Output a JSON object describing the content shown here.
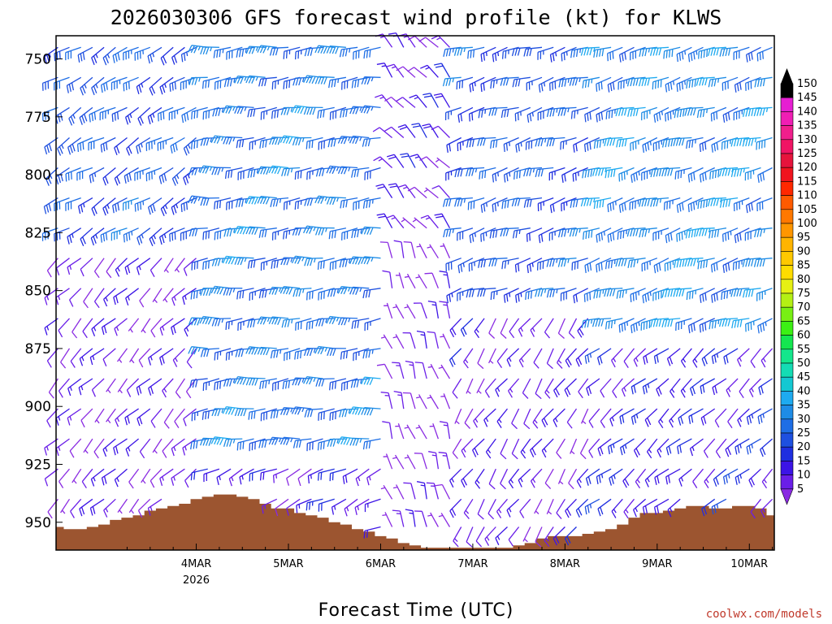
{
  "chart_data": {
    "type": "wind-barb-profile",
    "title": "2026030306 GFS forecast wind profile (kt) for KLWS",
    "xlabel": "Forecast Time (UTC)",
    "credit": "coolwx.com/models",
    "x_range_hours": [
      -18.5,
      168.5
    ],
    "y_range_hpa": [
      740,
      962
    ],
    "y_ticks": [
      750,
      775,
      800,
      825,
      850,
      875,
      900,
      925,
      950
    ],
    "x_ticks": [
      {
        "hour": 18,
        "label": "4MAR",
        "sublabel": "2026"
      },
      {
        "hour": 42,
        "label": "5MAR"
      },
      {
        "hour": 66,
        "label": "6MAR"
      },
      {
        "hour": 90,
        "label": "7MAR"
      },
      {
        "hour": 114,
        "label": "8MAR"
      },
      {
        "hour": 138,
        "label": "9MAR"
      },
      {
        "hour": 162,
        "label": "10MAR"
      }
    ],
    "colorbar": {
      "levels": [
        5,
        10,
        15,
        20,
        25,
        30,
        35,
        40,
        45,
        50,
        55,
        60,
        65,
        70,
        75,
        80,
        85,
        90,
        95,
        100,
        105,
        110,
        115,
        120,
        125,
        130,
        135,
        140,
        145,
        150
      ],
      "colors": [
        "#8a2be2",
        "#6a1ee8",
        "#3c14e6",
        "#1e2ee0",
        "#1e50e0",
        "#1e6ee6",
        "#1e8ce6",
        "#1eaaf0",
        "#14c8d2",
        "#14dcb4",
        "#14e68c",
        "#14e650",
        "#3cf014",
        "#78f014",
        "#b4f014",
        "#e6f014",
        "#ffdc00",
        "#ffc800",
        "#ffb400",
        "#ff9600",
        "#ff7800",
        "#ff5a00",
        "#ff2800",
        "#f0141e",
        "#e6143c",
        "#f01464",
        "#f01e8c",
        "#f01eb4",
        "#e61ed2",
        "#000000"
      ],
      "top_arrow_color": "#000000",
      "bottom_arrow_color": "#8a2be2"
    },
    "terrain_hpa": [
      {
        "hour": -18,
        "hpa": 952
      },
      {
        "hour": -15,
        "hpa": 953
      },
      {
        "hour": -12,
        "hpa": 953
      },
      {
        "hour": -9,
        "hpa": 952
      },
      {
        "hour": -6,
        "hpa": 951
      },
      {
        "hour": -3,
        "hpa": 949
      },
      {
        "hour": 0,
        "hpa": 948
      },
      {
        "hour": 3,
        "hpa": 947
      },
      {
        "hour": 6,
        "hpa": 945
      },
      {
        "hour": 9,
        "hpa": 944
      },
      {
        "hour": 12,
        "hpa": 943
      },
      {
        "hour": 15,
        "hpa": 942
      },
      {
        "hour": 18,
        "hpa": 940
      },
      {
        "hour": 21,
        "hpa": 939
      },
      {
        "hour": 24,
        "hpa": 938
      },
      {
        "hour": 27,
        "hpa": 938
      },
      {
        "hour": 30,
        "hpa": 939
      },
      {
        "hour": 33,
        "hpa": 940
      },
      {
        "hour": 36,
        "hpa": 942
      },
      {
        "hour": 39,
        "hpa": 944
      },
      {
        "hour": 42,
        "hpa": 944
      },
      {
        "hour": 45,
        "hpa": 946
      },
      {
        "hour": 48,
        "hpa": 947
      },
      {
        "hour": 51,
        "hpa": 948
      },
      {
        "hour": 54,
        "hpa": 950
      },
      {
        "hour": 57,
        "hpa": 951
      },
      {
        "hour": 60,
        "hpa": 953
      },
      {
        "hour": 63,
        "hpa": 954
      },
      {
        "hour": 66,
        "hpa": 956
      },
      {
        "hour": 69,
        "hpa": 957
      },
      {
        "hour": 72,
        "hpa": 959
      },
      {
        "hour": 75,
        "hpa": 960
      },
      {
        "hour": 78,
        "hpa": 961
      },
      {
        "hour": 81,
        "hpa": 961
      },
      {
        "hour": 84,
        "hpa": 961
      },
      {
        "hour": 87,
        "hpa": 961
      },
      {
        "hour": 90,
        "hpa": 961
      },
      {
        "hour": 93,
        "hpa": 961
      },
      {
        "hour": 96,
        "hpa": 961
      },
      {
        "hour": 99,
        "hpa": 961
      },
      {
        "hour": 102,
        "hpa": 960
      },
      {
        "hour": 105,
        "hpa": 959
      },
      {
        "hour": 108,
        "hpa": 957
      },
      {
        "hour": 111,
        "hpa": 956
      },
      {
        "hour": 114,
        "hpa": 956
      },
      {
        "hour": 117,
        "hpa": 956
      },
      {
        "hour": 120,
        "hpa": 955
      },
      {
        "hour": 123,
        "hpa": 954
      },
      {
        "hour": 126,
        "hpa": 953
      },
      {
        "hour": 129,
        "hpa": 951
      },
      {
        "hour": 132,
        "hpa": 948
      },
      {
        "hour": 135,
        "hpa": 946
      },
      {
        "hour": 138,
        "hpa": 946
      },
      {
        "hour": 141,
        "hpa": 945
      },
      {
        "hour": 144,
        "hpa": 944
      },
      {
        "hour": 147,
        "hpa": 943
      },
      {
        "hour": 150,
        "hpa": 943
      },
      {
        "hour": 153,
        "hpa": 944
      },
      {
        "hour": 156,
        "hpa": 944
      },
      {
        "hour": 159,
        "hpa": 943
      },
      {
        "hour": 162,
        "hpa": 943
      },
      {
        "hour": 165,
        "hpa": 944
      },
      {
        "hour": 168,
        "hpa": 947
      }
    ],
    "barb_time_step_hours": 3,
    "barb_levels_hpa": [
      745,
      758,
      771,
      784,
      797,
      810,
      823,
      836,
      849,
      862,
      875,
      888,
      901,
      914,
      927,
      940,
      952
    ],
    "wind_segments": [
      {
        "hours": [
          -18,
          18
        ],
        "levels": [
          745,
          758,
          771,
          784,
          797,
          810,
          823
        ],
        "direction": 240,
        "speed": 28
      },
      {
        "hours": [
          -18,
          18
        ],
        "levels": [
          836,
          849,
          862,
          875,
          888,
          901,
          914,
          927,
          940,
          952
        ],
        "direction": 225,
        "speed": 12
      },
      {
        "hours": [
          21,
          66
        ],
        "levels": [
          745,
          758,
          771,
          784,
          797,
          810,
          823,
          836,
          849,
          862,
          875,
          888,
          901,
          914
        ],
        "direction": 265,
        "speed": 33
      },
      {
        "hours": [
          21,
          66
        ],
        "levels": [
          927,
          940,
          952
        ],
        "direction": 245,
        "speed": 16
      },
      {
        "hours": [
          69,
          84
        ],
        "levels": [
          745,
          758,
          771,
          784,
          797,
          810,
          823
        ],
        "direction": 320,
        "speed": 14
      },
      {
        "hours": [
          69,
          84
        ],
        "levels": [
          836,
          849,
          862,
          875,
          888,
          901,
          914,
          927,
          940,
          952
        ],
        "direction": 340,
        "speed": 8
      },
      {
        "hours": [
          87,
          120
        ],
        "levels": [
          745,
          758,
          771,
          784,
          797,
          810,
          823,
          836,
          849
        ],
        "direction": 255,
        "speed": 28
      },
      {
        "hours": [
          87,
          120
        ],
        "levels": [
          862,
          875,
          888,
          901,
          914,
          927,
          940,
          952
        ],
        "direction": 215,
        "speed": 13
      },
      {
        "hours": [
          123,
          168
        ],
        "levels": [
          745,
          758,
          771,
          784,
          797,
          810,
          823,
          836,
          849,
          862
        ],
        "direction": 255,
        "speed": 36
      },
      {
        "hours": [
          123,
          168
        ],
        "levels": [
          875,
          888,
          901,
          914,
          927,
          940,
          952
        ],
        "direction": 230,
        "speed": 18
      }
    ]
  }
}
